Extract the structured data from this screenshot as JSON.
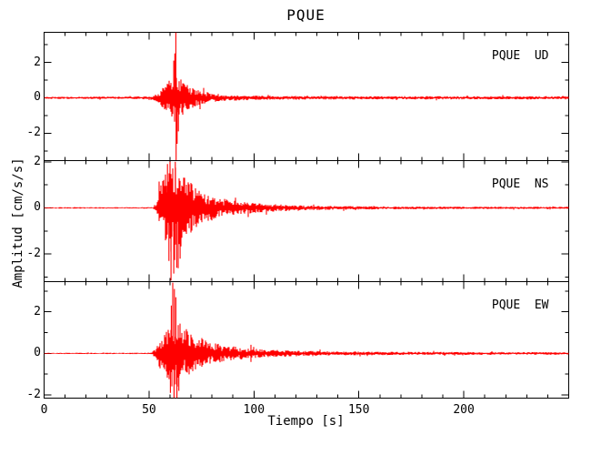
{
  "title": "PQUE",
  "colors": {
    "trace": "#ff0000",
    "frame": "#000000",
    "background": "#ffffff"
  },
  "chart_data": {
    "type": "line",
    "title": "PQUE",
    "xlabel": "Tiempo [s]",
    "ylabel": "Amplitud [cm/s/s]",
    "xlim": [
      0,
      250
    ],
    "x_major_ticks": [
      0,
      50,
      100,
      150,
      200
    ],
    "x_minor_step": 10,
    "grid": false,
    "legend_position": "none",
    "description": "Three-component strong-motion seismogram of station PQUE; quiet trace until onset near t=54 s, main burst peaking near t=62-64 s, coda decaying to background by t=120 s",
    "panels": [
      {
        "label": "PQUE  UD",
        "station": "PQUE",
        "component": "UD",
        "ylim": [
          -3.55,
          3.7
        ],
        "y_major_ticks": [
          -2,
          0,
          2
        ],
        "y_minor_ticks": [
          -3,
          -1,
          1,
          3
        ],
        "seed": 7,
        "envelope": [
          [
            0,
            0.06
          ],
          [
            40,
            0.07
          ],
          [
            50,
            0.09
          ],
          [
            53,
            0.18
          ],
          [
            55,
            0.4
          ],
          [
            57,
            0.62
          ],
          [
            59,
            0.88
          ],
          [
            61,
            1.2
          ],
          [
            63,
            1.5
          ],
          [
            65,
            1.15
          ],
          [
            67,
            0.85
          ],
          [
            70,
            0.6
          ],
          [
            74,
            0.4
          ],
          [
            79,
            0.27
          ],
          [
            86,
            0.18
          ],
          [
            95,
            0.14
          ],
          [
            110,
            0.11
          ],
          [
            140,
            0.1
          ],
          [
            200,
            0.09
          ],
          [
            250,
            0.09
          ]
        ],
        "spikes": [
          [
            62.8,
            3.7
          ],
          [
            62.9,
            -3.55
          ],
          [
            62.3,
            2.5
          ],
          [
            63.4,
            -2.6
          ],
          [
            61.8,
            2.1
          ],
          [
            64.0,
            -1.9
          ]
        ]
      },
      {
        "label": "PQUE  NS",
        "station": "PQUE",
        "component": "NS",
        "ylim": [
          -3.2,
          2.05
        ],
        "y_major_ticks": [
          -2,
          0,
          2
        ],
        "y_minor_ticks": [
          -3,
          -1,
          1
        ],
        "seed": 13,
        "envelope": [
          [
            0,
            0.03
          ],
          [
            52,
            0.03
          ],
          [
            53,
            0.2
          ],
          [
            54,
            0.5
          ],
          [
            55.5,
            0.95
          ],
          [
            57,
            1.4
          ],
          [
            58.5,
            1.75
          ],
          [
            60,
            1.95
          ],
          [
            62,
            2.0
          ],
          [
            64,
            1.85
          ],
          [
            66,
            1.6
          ],
          [
            68,
            1.35
          ],
          [
            70,
            1.1
          ],
          [
            73,
            0.85
          ],
          [
            77,
            0.65
          ],
          [
            82,
            0.48
          ],
          [
            88,
            0.36
          ],
          [
            95,
            0.27
          ],
          [
            103,
            0.2
          ],
          [
            112,
            0.15
          ],
          [
            125,
            0.11
          ],
          [
            140,
            0.08
          ],
          [
            170,
            0.06
          ],
          [
            210,
            0.05
          ],
          [
            250,
            0.05
          ]
        ],
        "spikes": [
          [
            60.5,
            -3.15
          ],
          [
            61.8,
            -2.85
          ],
          [
            63.2,
            -2.6
          ],
          [
            59.5,
            -2.3
          ],
          [
            60.0,
            2.0
          ],
          [
            62.5,
            2.0
          ],
          [
            64.8,
            -2.2
          ],
          [
            58.8,
            1.9
          ]
        ]
      },
      {
        "label": "PQUE  EW",
        "station": "PQUE",
        "component": "EW",
        "ylim": [
          -2.15,
          3.45
        ],
        "y_major_ticks": [
          -2,
          0,
          2
        ],
        "y_minor_ticks": [
          -1,
          1,
          3
        ],
        "seed": 29,
        "envelope": [
          [
            0,
            0.03
          ],
          [
            51,
            0.035
          ],
          [
            53,
            0.25
          ],
          [
            54.5,
            0.55
          ],
          [
            56,
            0.9
          ],
          [
            58,
            1.3
          ],
          [
            60,
            1.6
          ],
          [
            62,
            1.75
          ],
          [
            64,
            1.6
          ],
          [
            66,
            1.35
          ],
          [
            68,
            1.15
          ],
          [
            71,
            0.9
          ],
          [
            75,
            0.7
          ],
          [
            80,
            0.52
          ],
          [
            86,
            0.4
          ],
          [
            93,
            0.3
          ],
          [
            101,
            0.22
          ],
          [
            110,
            0.17
          ],
          [
            122,
            0.13
          ],
          [
            138,
            0.1
          ],
          [
            160,
            0.08
          ],
          [
            200,
            0.07
          ],
          [
            250,
            0.06
          ]
        ],
        "spikes": [
          [
            61.3,
            3.4
          ],
          [
            62.1,
            3.1
          ],
          [
            62.8,
            2.7
          ],
          [
            60.6,
            2.3
          ],
          [
            61.9,
            -2.15
          ],
          [
            63.3,
            -2.15
          ],
          [
            60.2,
            -1.9
          ],
          [
            64.2,
            -1.8
          ]
        ]
      }
    ]
  }
}
